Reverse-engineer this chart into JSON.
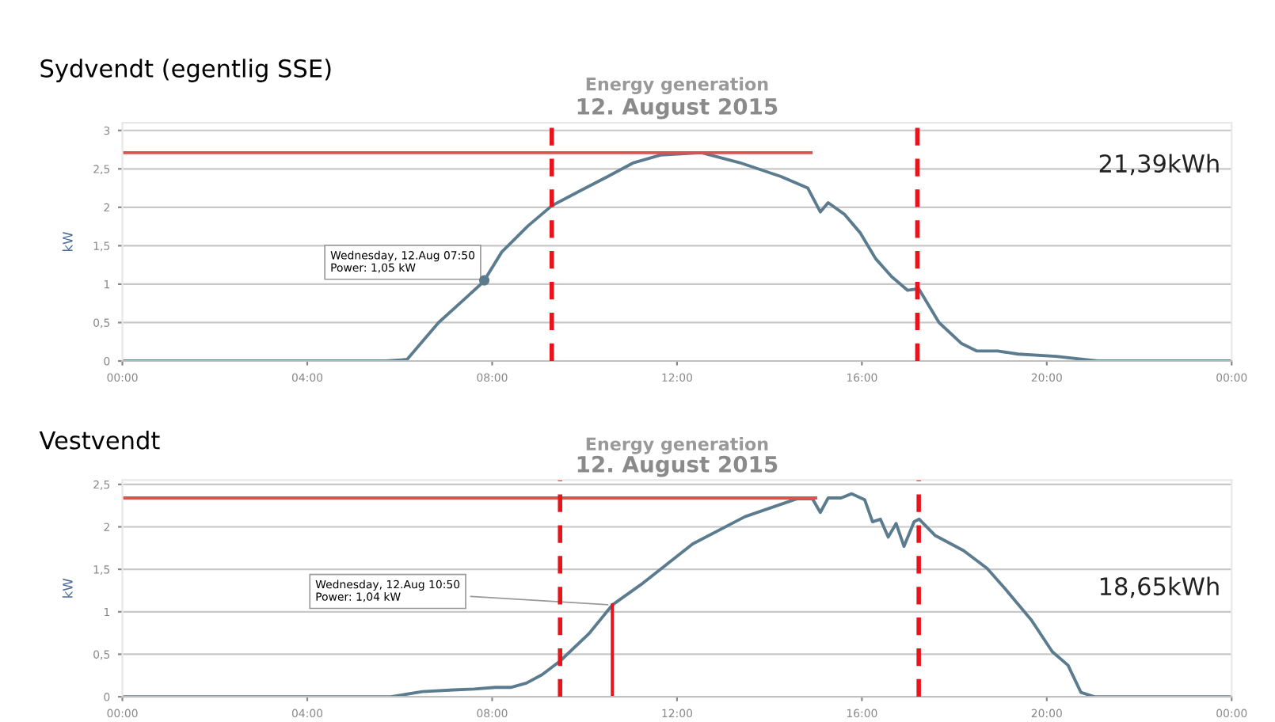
{
  "chart_data": [
    {
      "type": "line",
      "title": "Energy generation",
      "subtitle": "12. August 2015",
      "ylabel": "kW",
      "annotations": [
        "Sydvendt (egentlig SSE)",
        "21,39kWh",
        {
          "text": "Wednesday, 12.Aug 07:50\nPower: 1,05 kW",
          "x": 7.83,
          "y": 1.05
        }
      ],
      "series": [
        {
          "color": "#5b7b8e",
          "x": [
            0,
            5.7,
            6.16,
            6.84,
            7.41,
            7.81,
            8.21,
            8.78,
            9.29,
            9.92,
            10.5,
            11.06,
            11.64,
            12.53,
            13.36,
            14.25,
            14.83,
            15.1,
            15.27,
            15.62,
            15.96,
            16.3,
            16.64,
            16.99,
            17.23,
            17.67,
            18.15,
            18.49,
            18.94,
            19.38,
            20.2,
            21.1,
            24
          ],
          "values": [
            0,
            0,
            0.02,
            0.5,
            0.81,
            1.03,
            1.42,
            1.76,
            2.02,
            2.22,
            2.4,
            2.58,
            2.68,
            2.71,
            2.58,
            2.4,
            2.25,
            1.94,
            2.06,
            1.91,
            1.67,
            1.33,
            1.1,
            0.92,
            0.94,
            0.5,
            0.23,
            0.13,
            0.13,
            0.09,
            0.06,
            0,
            0
          ]
        },
        {
          "type": "scatter",
          "color": "#5b7b8e",
          "marker": "circle",
          "x": [
            7.83
          ],
          "values": [
            1.05
          ]
        },
        {
          "type": "line",
          "color": "#d9534f",
          "x": [
            0,
            14.9
          ],
          "values": [
            2.71,
            2.71
          ]
        }
      ],
      "ref_lines": [
        {
          "axis": "x",
          "value": 9.29,
          "color": "#e8141c",
          "line_style": "dashed"
        },
        {
          "axis": "x",
          "value": 17.2,
          "color": "#e8141c",
          "line_style": "dashed"
        }
      ],
      "xlim": [
        0,
        24
      ],
      "xticks": [
        {
          "value": 0,
          "label": "00:00"
        },
        {
          "value": 4,
          "label": "04:00"
        },
        {
          "value": 8,
          "label": "08:00"
        },
        {
          "value": 12,
          "label": "12:00"
        },
        {
          "value": 16,
          "label": "16:00"
        },
        {
          "value": 20,
          "label": "20:00"
        },
        {
          "value": 24,
          "label": "00:00"
        }
      ],
      "ylim": [
        0,
        3.1
      ],
      "yticks": [
        0,
        {
          "value": 0.5,
          "label": "0,5"
        },
        1,
        {
          "value": 1.5,
          "label": "1,5"
        },
        2,
        {
          "value": 2.5,
          "label": "2,5"
        },
        3
      ],
      "grid": "y",
      "marker": "none",
      "line_style": "solid"
    },
    {
      "type": "line",
      "title": "Energy generation",
      "subtitle": "12. August 2015",
      "ylabel": "kW",
      "annotations": [
        "Vestvendt",
        "18,65kWh",
        {
          "text": "Wednesday, 12.Aug 10:50\nPower: 1,04 kW",
          "x": 10.6,
          "y": 1.08
        }
      ],
      "series": [
        {
          "color": "#5b7b8e",
          "x": [
            0,
            5.81,
            6.49,
            7.16,
            7.61,
            8.07,
            8.4,
            8.74,
            9.08,
            9.47,
            10.09,
            10.6,
            11.22,
            12.34,
            13.47,
            14.59,
            14.93,
            15.1,
            15.27,
            15.55,
            15.78,
            16.06,
            16.23,
            16.4,
            16.57,
            16.74,
            16.91,
            17.13,
            17.24,
            17.58,
            18.2,
            18.71,
            19.1,
            19.67,
            20.12,
            20.46,
            20.74,
            21.03,
            24
          ],
          "values": [
            0,
            0,
            0.06,
            0.08,
            0.09,
            0.11,
            0.11,
            0.16,
            0.26,
            0.42,
            0.74,
            1.08,
            1.32,
            1.8,
            2.12,
            2.33,
            2.33,
            2.17,
            2.34,
            2.34,
            2.39,
            2.32,
            2.06,
            2.09,
            1.88,
            2.04,
            1.77,
            2.06,
            2.09,
            1.9,
            1.72,
            1.51,
            1.27,
            0.9,
            0.53,
            0.37,
            0.05,
            0,
            0
          ]
        },
        {
          "type": "line",
          "color": "#d9534f",
          "x": [
            0,
            15.0
          ],
          "values": [
            2.34,
            2.34
          ]
        },
        {
          "type": "line",
          "color": "#e8141c",
          "x": [
            10.6,
            10.6
          ],
          "values": [
            0,
            1.08
          ]
        }
      ],
      "ref_lines": [
        {
          "axis": "x",
          "value": 9.47,
          "color": "#e8141c",
          "line_style": "dashed"
        },
        {
          "axis": "x",
          "value": 17.23,
          "color": "#e8141c",
          "line_style": "dashed"
        }
      ],
      "xlim": [
        0,
        24
      ],
      "xticks": [
        {
          "value": 0,
          "label": "00:00"
        },
        {
          "value": 4,
          "label": "04:00"
        },
        {
          "value": 8,
          "label": "08:00"
        },
        {
          "value": 12,
          "label": "12:00"
        },
        {
          "value": 16,
          "label": "16:00"
        },
        {
          "value": 20,
          "label": "20:00"
        },
        {
          "value": 24,
          "label": "00:00"
        }
      ],
      "ylim": [
        0,
        2.55
      ],
      "yticks": [
        0,
        {
          "value": 0.5,
          "label": "0,5"
        },
        1,
        {
          "value": 1.5,
          "label": "1,5"
        },
        2,
        {
          "value": 2.5,
          "label": "2,5"
        }
      ],
      "grid": "y",
      "marker": "none",
      "line_style": "solid"
    }
  ]
}
